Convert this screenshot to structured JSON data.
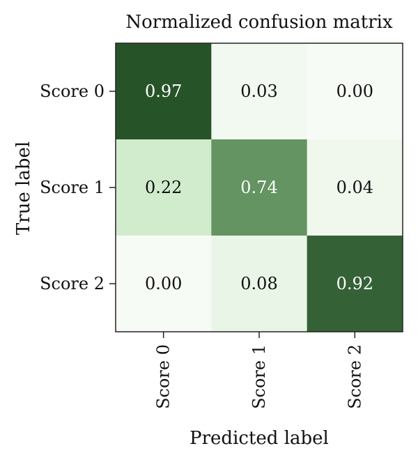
{
  "chart_data": {
    "type": "heatmap",
    "title": "Normalized confusion matrix",
    "xlabel": "Predicted label",
    "ylabel": "True label",
    "x_categories": [
      "Score 0",
      "Score 1",
      "Score 2"
    ],
    "y_categories": [
      "Score 0",
      "Score 1",
      "Score 2"
    ],
    "values": [
      [
        0.97,
        0.03,
        0.0
      ],
      [
        0.22,
        0.74,
        0.04
      ],
      [
        0.0,
        0.08,
        0.92
      ]
    ],
    "value_format": "0.00",
    "vmin": 0,
    "vmax": 1,
    "colormap": "Greens",
    "colors": {
      "low": "#f7fbf5",
      "mid": "#a1d99b",
      "high": "#1f4a22",
      "text_dark": "#111111",
      "text_light": "#ffffff"
    }
  }
}
